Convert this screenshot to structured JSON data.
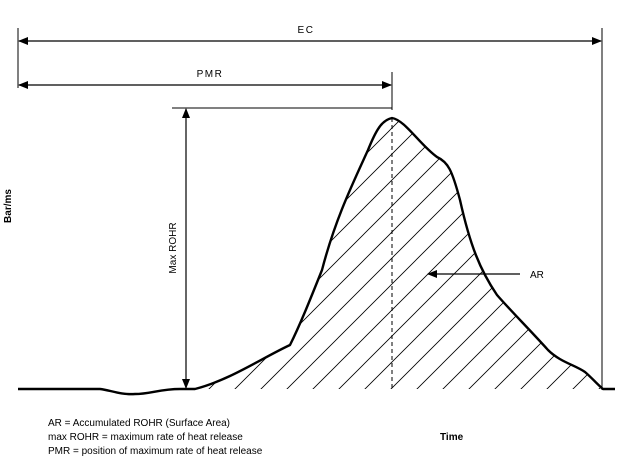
{
  "diagram": {
    "dimension_labels": {
      "ec": "EC",
      "pmr": "PMR",
      "max_rohr": "Max ROHR",
      "ar": "AR"
    },
    "axes": {
      "y_label": "Bar/ms",
      "x_label": "Time"
    },
    "legend": [
      "AR = Accumulated ROHR (Surface Area)",
      "max ROHR = maximum rate of heat release",
      "PMR = position of maximum rate of heat release"
    ]
  }
}
